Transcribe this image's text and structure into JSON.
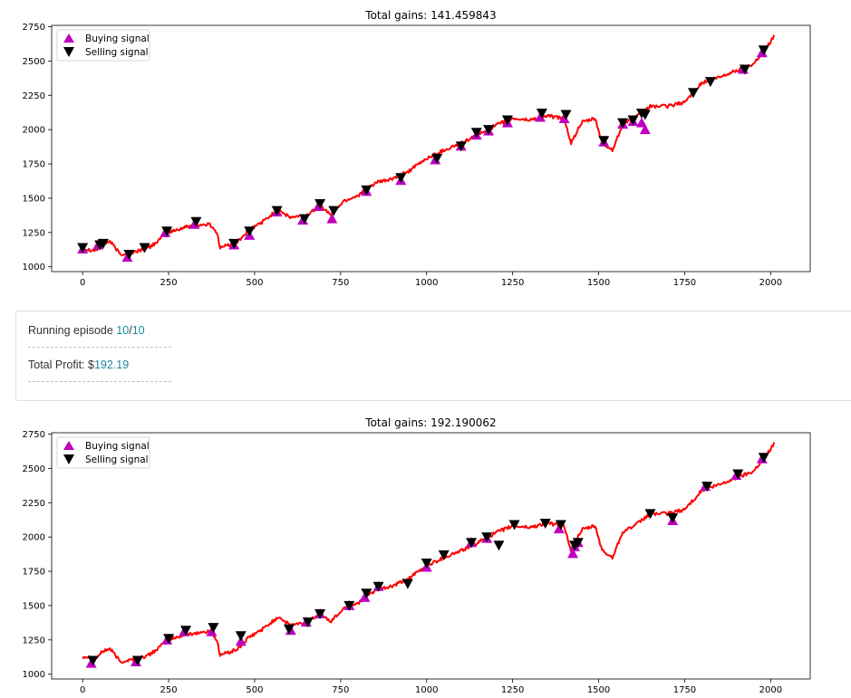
{
  "log": {
    "episode_prefix": "Running episode ",
    "episode_current": "10",
    "episode_sep": "/",
    "episode_total": "10",
    "profit_prefix": "Total Profit: $",
    "profit_value": "192.19"
  },
  "chart_data": [
    {
      "type": "line",
      "title": "Total gains: 141.459843",
      "xlabel": "",
      "ylabel": "",
      "xlim": [
        -90,
        2115
      ],
      "ylim": [
        965,
        2760
      ],
      "xticks": [
        0,
        250,
        500,
        750,
        1000,
        1250,
        1500,
        1750,
        2000
      ],
      "yticks": [
        1000,
        1250,
        1500,
        1750,
        2000,
        2250,
        2500,
        2750
      ],
      "grid": false,
      "legend": "top-left",
      "colors": {
        "price": "#ff0000",
        "buy": "#bf00bf",
        "sell": "#000000"
      },
      "price_keypoints": [
        [
          0,
          1130
        ],
        [
          40,
          1120
        ],
        [
          60,
          1170
        ],
        [
          80,
          1185
        ],
        [
          110,
          1090
        ],
        [
          150,
          1110
        ],
        [
          190,
          1135
        ],
        [
          220,
          1190
        ],
        [
          250,
          1250
        ],
        [
          300,
          1290
        ],
        [
          330,
          1300
        ],
        [
          370,
          1310
        ],
        [
          390,
          1250
        ],
        [
          400,
          1140
        ],
        [
          450,
          1180
        ],
        [
          480,
          1260
        ],
        [
          530,
          1340
        ],
        [
          570,
          1420
        ],
        [
          600,
          1360
        ],
        [
          650,
          1370
        ],
        [
          690,
          1450
        ],
        [
          720,
          1380
        ],
        [
          760,
          1480
        ],
        [
          800,
          1520
        ],
        [
          850,
          1610
        ],
        [
          900,
          1640
        ],
        [
          950,
          1700
        ],
        [
          1000,
          1790
        ],
        [
          1050,
          1850
        ],
        [
          1100,
          1900
        ],
        [
          1150,
          1960
        ],
        [
          1200,
          2030
        ],
        [
          1250,
          2080
        ],
        [
          1300,
          2070
        ],
        [
          1350,
          2100
        ],
        [
          1400,
          2080
        ],
        [
          1420,
          1900
        ],
        [
          1450,
          2050
        ],
        [
          1490,
          2080
        ],
        [
          1510,
          1900
        ],
        [
          1540,
          1850
        ],
        [
          1570,
          2040
        ],
        [
          1610,
          2090
        ],
        [
          1650,
          2170
        ],
        [
          1700,
          2170
        ],
        [
          1750,
          2200
        ],
        [
          1800,
          2340
        ],
        [
          1850,
          2380
        ],
        [
          1900,
          2430
        ],
        [
          1950,
          2480
        ],
        [
          2000,
          2640
        ],
        [
          2010,
          2690
        ]
      ],
      "series": [
        {
          "name": "Buying signal",
          "marker": "triangle-up",
          "x": [
            0,
            45,
            130,
            240,
            325,
            440,
            485,
            565,
            640,
            685,
            725,
            825,
            925,
            1025,
            1100,
            1145,
            1180,
            1235,
            1330,
            1400,
            1515,
            1570,
            1600,
            1625,
            1635,
            1920,
            1975
          ],
          "y": [
            1130,
            1160,
            1070,
            1250,
            1310,
            1160,
            1230,
            1400,
            1340,
            1440,
            1350,
            1550,
            1630,
            1780,
            1880,
            1960,
            1990,
            2050,
            2090,
            2080,
            1910,
            2040,
            2060,
            2050,
            2000,
            2440,
            2560
          ]
        },
        {
          "name": "Selling signal",
          "marker": "triangle-down",
          "x": [
            0,
            50,
            60,
            135,
            180,
            245,
            330,
            440,
            485,
            565,
            645,
            690,
            730,
            825,
            925,
            1030,
            1100,
            1145,
            1180,
            1235,
            1335,
            1405,
            1515,
            1570,
            1600,
            1625,
            1635,
            1775,
            1825,
            1925,
            1980
          ],
          "y": [
            1140,
            1160,
            1170,
            1090,
            1140,
            1260,
            1330,
            1170,
            1260,
            1410,
            1350,
            1460,
            1410,
            1560,
            1650,
            1790,
            1880,
            1980,
            2000,
            2070,
            2120,
            2110,
            1920,
            2050,
            2070,
            2120,
            2110,
            2270,
            2350,
            2440,
            2580
          ]
        }
      ]
    },
    {
      "type": "line",
      "title": "Total gains: 192.190062",
      "xlabel": "",
      "ylabel": "",
      "xlim": [
        -90,
        2115
      ],
      "ylim": [
        965,
        2760
      ],
      "xticks": [
        0,
        250,
        500,
        750,
        1000,
        1250,
        1500,
        1750,
        2000
      ],
      "yticks": [
        1000,
        1250,
        1500,
        1750,
        2000,
        2250,
        2500,
        2750
      ],
      "grid": false,
      "legend": "top-left",
      "colors": {
        "price": "#ff0000",
        "buy": "#bf00bf",
        "sell": "#000000"
      },
      "price_keypoints": [
        [
          0,
          1130
        ],
        [
          40,
          1120
        ],
        [
          60,
          1170
        ],
        [
          80,
          1185
        ],
        [
          110,
          1090
        ],
        [
          150,
          1110
        ],
        [
          190,
          1135
        ],
        [
          220,
          1190
        ],
        [
          250,
          1250
        ],
        [
          300,
          1290
        ],
        [
          330,
          1300
        ],
        [
          370,
          1310
        ],
        [
          390,
          1250
        ],
        [
          400,
          1140
        ],
        [
          450,
          1180
        ],
        [
          480,
          1260
        ],
        [
          530,
          1340
        ],
        [
          570,
          1420
        ],
        [
          600,
          1360
        ],
        [
          650,
          1370
        ],
        [
          690,
          1450
        ],
        [
          720,
          1380
        ],
        [
          760,
          1480
        ],
        [
          800,
          1520
        ],
        [
          850,
          1610
        ],
        [
          900,
          1640
        ],
        [
          950,
          1700
        ],
        [
          1000,
          1790
        ],
        [
          1050,
          1850
        ],
        [
          1100,
          1900
        ],
        [
          1150,
          1960
        ],
        [
          1200,
          2030
        ],
        [
          1250,
          2080
        ],
        [
          1300,
          2070
        ],
        [
          1350,
          2100
        ],
        [
          1400,
          2080
        ],
        [
          1420,
          1900
        ],
        [
          1450,
          2050
        ],
        [
          1490,
          2080
        ],
        [
          1510,
          1900
        ],
        [
          1540,
          1850
        ],
        [
          1570,
          2040
        ],
        [
          1610,
          2090
        ],
        [
          1650,
          2170
        ],
        [
          1700,
          2170
        ],
        [
          1750,
          2200
        ],
        [
          1800,
          2340
        ],
        [
          1850,
          2380
        ],
        [
          1900,
          2430
        ],
        [
          1950,
          2480
        ],
        [
          2000,
          2640
        ],
        [
          2010,
          2690
        ]
      ],
      "series": [
        {
          "name": "Buying signal",
          "marker": "triangle-up",
          "x": [
            25,
            155,
            245,
            295,
            375,
            460,
            605,
            650,
            690,
            775,
            820,
            860,
            1000,
            1130,
            1175,
            1385,
            1425,
            1430,
            1440,
            1715,
            1810,
            1900,
            1975
          ],
          "y": [
            1080,
            1090,
            1250,
            1310,
            1310,
            1240,
            1320,
            1380,
            1440,
            1500,
            1560,
            1640,
            1780,
            1960,
            1990,
            2060,
            1880,
            1930,
            1960,
            2120,
            2370,
            2450,
            2570
          ]
        },
        {
          "name": "Selling signal",
          "marker": "triangle-down",
          "x": [
            30,
            160,
            250,
            300,
            380,
            460,
            600,
            655,
            690,
            775,
            825,
            860,
            945,
            1000,
            1050,
            1130,
            1175,
            1210,
            1255,
            1345,
            1390,
            1430,
            1440,
            1650,
            1715,
            1815,
            1905,
            1980
          ],
          "y": [
            1100,
            1100,
            1260,
            1320,
            1340,
            1280,
            1330,
            1380,
            1440,
            1500,
            1590,
            1640,
            1660,
            1810,
            1870,
            1960,
            2000,
            1940,
            2090,
            2100,
            2090,
            1940,
            1960,
            2170,
            2140,
            2370,
            2460,
            2580
          ]
        }
      ]
    }
  ]
}
